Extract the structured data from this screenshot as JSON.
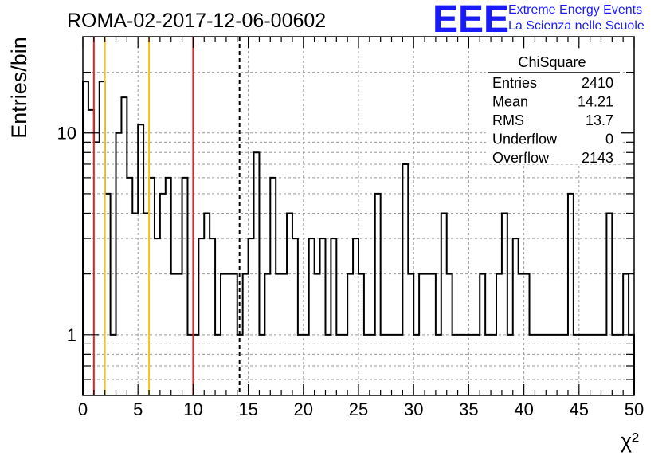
{
  "title": "ROMA-02-2017-12-06-00602",
  "logo": {
    "mark": "EEE",
    "line1": "Extreme Energy Events",
    "line2": "La Scienza nelle Scuole",
    "color": "#1a1aff"
  },
  "stats": {
    "name": "ChiSquare",
    "rows": [
      {
        "label": "Entries",
        "value": "2410"
      },
      {
        "label": "Mean",
        "value": "14.21"
      },
      {
        "label": "RMS",
        "value": "13.7"
      },
      {
        "label": "Underflow",
        "value": "0"
      },
      {
        "label": "Overflow",
        "value": "2143"
      }
    ]
  },
  "chart_data": {
    "type": "histogram",
    "title": "ROMA-02-2017-12-06-00602",
    "xlabel": "χ²",
    "ylabel": "Entries/bin",
    "xlim": [
      0,
      50
    ],
    "ylim": [
      0.5,
      30
    ],
    "log_y": true,
    "grid": true,
    "x_ticks": [
      "0",
      "5",
      "10",
      "15",
      "20",
      "25",
      "30",
      "35",
      "40",
      "45",
      "50"
    ],
    "y_tick_labels": [
      {
        "value": 1,
        "label": "1"
      },
      {
        "value": 10,
        "label": "10"
      }
    ],
    "bin_width": 0.5,
    "bin_start": 0,
    "values": [
      18,
      13,
      9,
      18,
      5,
      1,
      10,
      15,
      6,
      4,
      11,
      4,
      6,
      3,
      5,
      6,
      2,
      2,
      6,
      1,
      1,
      3,
      4,
      3,
      1,
      2,
      2,
      2,
      1,
      2,
      3,
      8,
      1,
      2,
      6,
      2,
      2,
      4,
      3,
      1,
      1,
      3,
      2,
      3,
      1,
      3,
      1,
      1,
      2,
      3,
      2,
      1,
      1,
      5,
      1,
      1,
      1,
      1,
      7,
      2,
      1,
      2,
      2,
      2,
      1,
      4,
      2,
      1,
      1,
      1,
      1,
      1,
      2,
      1,
      1,
      2,
      4,
      1,
      3,
      2,
      2,
      1,
      1,
      1,
      1,
      1,
      1,
      1,
      5,
      1,
      1,
      1,
      1,
      1,
      1,
      4,
      1,
      1,
      2,
      1
    ],
    "reference_lines": [
      {
        "x": 1,
        "color": "#e8231f",
        "style": "solid"
      },
      {
        "x": 10,
        "color": "#e8231f",
        "style": "solid"
      },
      {
        "x": 2,
        "color": "#f5c518",
        "style": "solid"
      },
      {
        "x": 6,
        "color": "#f5c518",
        "style": "solid"
      },
      {
        "x": 14.21,
        "color": "#000000",
        "style": "dashed"
      }
    ]
  }
}
